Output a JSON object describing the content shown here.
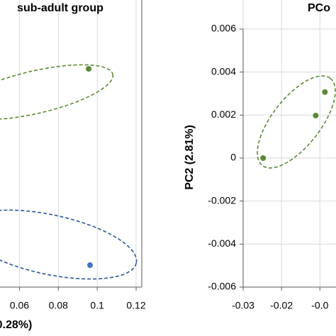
{
  "chart_data": [
    {
      "type": "scatter",
      "title": "sub-adult group",
      "xlabel": "0.28%)",
      "xlim": [
        0.05,
        0.12
      ],
      "xticks": [
        0.06,
        0.08,
        0.1,
        0.12
      ],
      "ylim": [
        -0.006,
        0.006
      ],
      "grid": true,
      "series": [
        {
          "color": "#5b8a34",
          "x": [
            0.0956
          ],
          "values": [
            0.00415
          ]
        },
        {
          "color": "#4472c4",
          "x": [
            0.0963
          ],
          "values": [
            -0.00498
          ]
        }
      ]
    },
    {
      "type": "scatter",
      "title": "PCo",
      "ylabel": "PC2 (2.81%)",
      "xlim": [
        -0.03,
        -0.006
      ],
      "xticks": [
        -0.03,
        -0.02,
        {
          "value": -0.01,
          "label": "-0.0"
        }
      ],
      "ylim": [
        -0.006,
        0.006
      ],
      "yticks": [
        0.006,
        0.004,
        0.002,
        0,
        -0.002,
        -0.004,
        -0.006
      ],
      "grid": true,
      "series": [
        {
          "color": "#5b8a34",
          "x": [
            -0.0248,
            -0.0111,
            -0.0087
          ],
          "values": [
            0,
            0.00198,
            0.00307
          ]
        }
      ]
    }
  ]
}
